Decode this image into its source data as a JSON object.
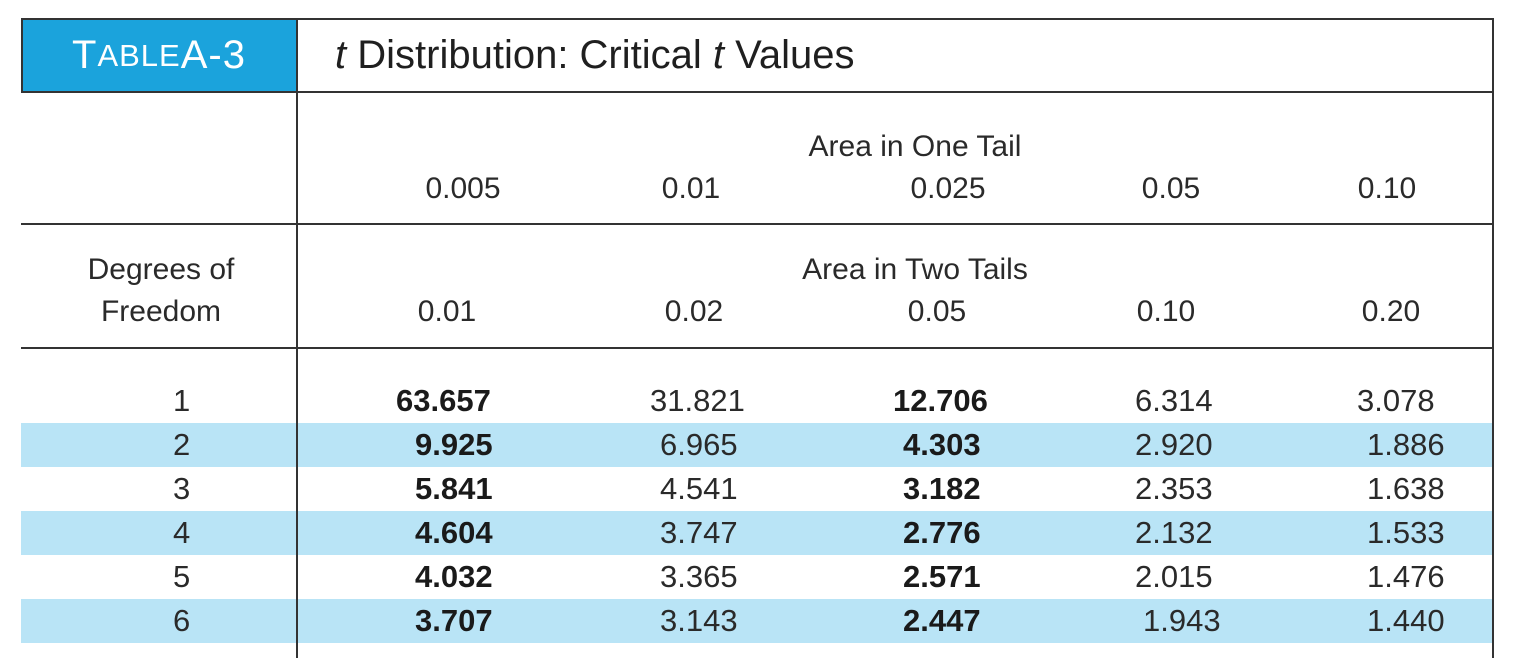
{
  "title": {
    "badge_prefix": "T",
    "badge_smallcaps": "ABLE",
    "badge_suffix": " A-3",
    "var1": "t",
    "middle": " Distribution: Critical ",
    "var2": "t",
    "end": " Values"
  },
  "one_tail": {
    "label": "Area in One Tail",
    "values": [
      "0.005",
      "0.01",
      "0.025",
      "0.05",
      "0.10"
    ]
  },
  "two_tails": {
    "label": "Area in Two Tails",
    "values": [
      "0.01",
      "0.02",
      "0.05",
      "0.10",
      "0.20"
    ]
  },
  "df_label": {
    "line1": "Degrees of",
    "line2": "Freedom"
  },
  "rows": [
    {
      "df": "1",
      "v": [
        "63.657",
        "31.821",
        "12.706",
        "6.314",
        "3.078"
      ]
    },
    {
      "df": "2",
      "v": [
        "9.925",
        "6.965",
        "4.303",
        "2.920",
        "1.886"
      ]
    },
    {
      "df": "3",
      "v": [
        "5.841",
        "4.541",
        "3.182",
        "2.353",
        "1.638"
      ]
    },
    {
      "df": "4",
      "v": [
        "4.604",
        "3.747",
        "2.776",
        "2.132",
        "1.533"
      ]
    },
    {
      "df": "5",
      "v": [
        "4.032",
        "3.365",
        "2.571",
        "2.015",
        "1.476"
      ]
    },
    {
      "df": "6",
      "v": [
        "3.707",
        "3.143",
        "2.447",
        "1.943",
        "1.440"
      ]
    }
  ],
  "colors": {
    "accent": "#1ba3dc",
    "row_shade": "#b9e4f6"
  }
}
